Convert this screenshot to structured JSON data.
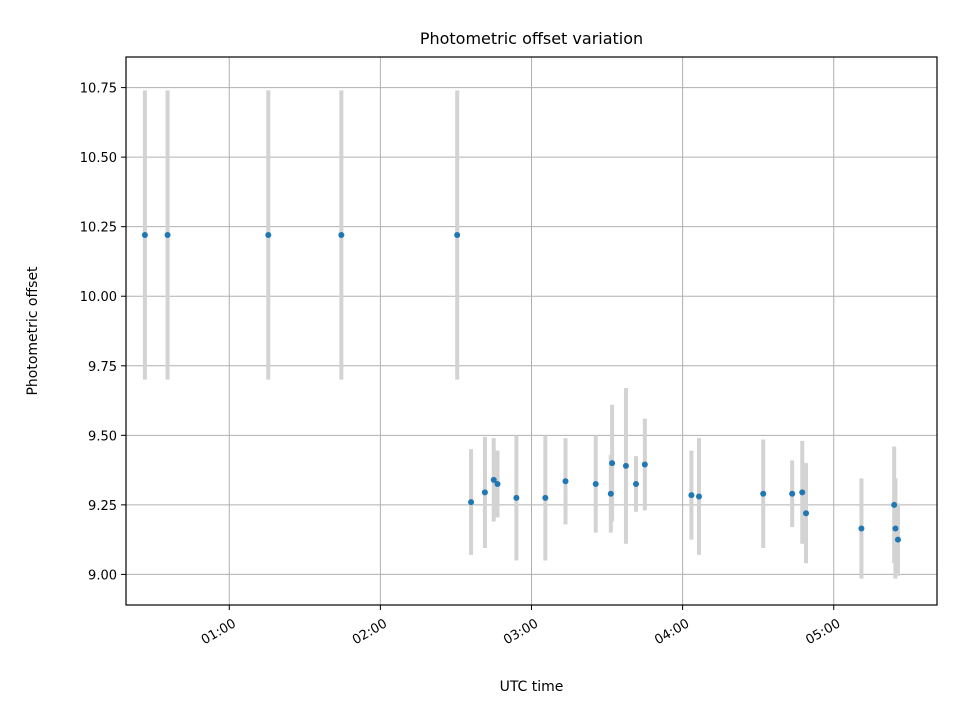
{
  "chart_data": {
    "type": "scatter",
    "title": "Photometric offset variation",
    "xlabel": "UTC time",
    "ylabel": "Photometric offset",
    "x_format": "HH:MM",
    "xlim": [
      "00:19:00",
      "05:41:00"
    ],
    "ylim": [
      8.89,
      10.86
    ],
    "xticks": [
      {
        "value": "01:00:00",
        "label": "01:00"
      },
      {
        "value": "02:00:00",
        "label": "02:00"
      },
      {
        "value": "03:00:00",
        "label": "03:00"
      },
      {
        "value": "04:00:00",
        "label": "04:00"
      },
      {
        "value": "05:00:00",
        "label": "05:00"
      }
    ],
    "yticks": [
      {
        "value": 9.0,
        "label": "9.00"
      },
      {
        "value": 9.25,
        "label": "9.25"
      },
      {
        "value": 9.5,
        "label": "9.50"
      },
      {
        "value": 9.75,
        "label": "9.75"
      },
      {
        "value": 10.0,
        "label": "10.00"
      },
      {
        "value": 10.25,
        "label": "10.25"
      },
      {
        "value": 10.5,
        "label": "10.50"
      },
      {
        "value": 10.75,
        "label": "10.75"
      }
    ],
    "grid": true,
    "marker_color": "#1f77b4",
    "errorbar_color": "#d3d3d3",
    "points": [
      {
        "time": "00:26:30",
        "y": 10.22,
        "yerr": 0.52
      },
      {
        "time": "00:35:30",
        "y": 10.22,
        "yerr": 0.52
      },
      {
        "time": "01:15:30",
        "y": 10.22,
        "yerr": 0.52
      },
      {
        "time": "01:44:30",
        "y": 10.22,
        "yerr": 0.52
      },
      {
        "time": "02:30:30",
        "y": 10.22,
        "yerr": 0.52
      },
      {
        "time": "02:36:00",
        "y": 9.26,
        "yerr": 0.19
      },
      {
        "time": "02:41:30",
        "y": 9.295,
        "yerr": 0.2
      },
      {
        "time": "02:45:00",
        "y": 9.34,
        "yerr": 0.15
      },
      {
        "time": "02:46:30",
        "y": 9.325,
        "yerr": 0.12
      },
      {
        "time": "02:54:00",
        "y": 9.275,
        "yerr": 0.225
      },
      {
        "time": "03:05:30",
        "y": 9.275,
        "yerr": 0.225
      },
      {
        "time": "03:13:30",
        "y": 9.335,
        "yerr": 0.155
      },
      {
        "time": "03:25:30",
        "y": 9.325,
        "yerr": 0.175
      },
      {
        "time": "03:31:30",
        "y": 9.29,
        "yerr": 0.14
      },
      {
        "time": "03:32:00",
        "y": 9.4,
        "yerr": 0.21
      },
      {
        "time": "03:37:30",
        "y": 9.39,
        "yerr": 0.28
      },
      {
        "time": "03:41:30",
        "y": 9.325,
        "yerr": 0.1
      },
      {
        "time": "03:45:00",
        "y": 9.395,
        "yerr": 0.165
      },
      {
        "time": "04:03:30",
        "y": 9.285,
        "yerr": 0.16
      },
      {
        "time": "04:06:30",
        "y": 9.28,
        "yerr": 0.21
      },
      {
        "time": "04:32:00",
        "y": 9.29,
        "yerr": 0.195
      },
      {
        "time": "04:43:30",
        "y": 9.29,
        "yerr": 0.12
      },
      {
        "time": "04:47:30",
        "y": 9.295,
        "yerr": 0.185
      },
      {
        "time": "04:49:00",
        "y": 9.22,
        "yerr": 0.18
      },
      {
        "time": "05:11:00",
        "y": 9.165,
        "yerr": 0.18
      },
      {
        "time": "05:24:00",
        "y": 9.25,
        "yerr": 0.21
      },
      {
        "time": "05:24:30",
        "y": 9.165,
        "yerr": 0.18
      },
      {
        "time": "05:25:30",
        "y": 9.125,
        "yerr": 0.13
      }
    ]
  }
}
